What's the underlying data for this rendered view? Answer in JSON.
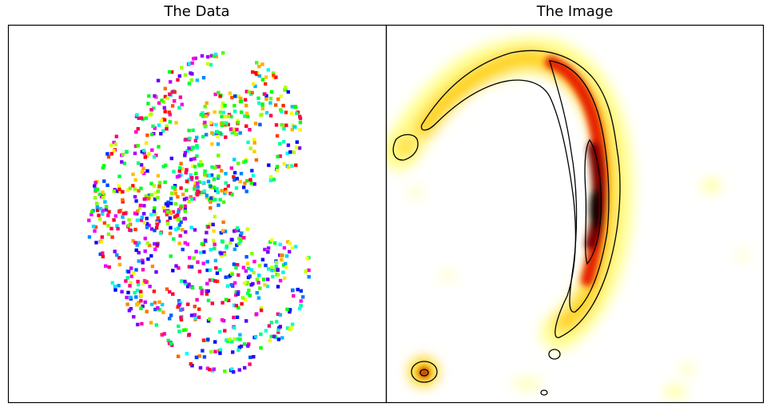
{
  "panels": [
    {
      "title": "The Data"
    },
    {
      "title": "The Image"
    }
  ],
  "chart_data": [
    {
      "type": "scatter",
      "title": "The Data",
      "xlabel": "",
      "ylabel": "",
      "axes_ticks": "none",
      "grid": false,
      "colormap": "hsv (phase)",
      "structure": "concentric elliptical arc tracks of small uv-coverage tiles around a central hole"
    },
    {
      "type": "heatmap",
      "title": "The Image",
      "xlabel": "",
      "ylabel": "",
      "axes_ticks": "none",
      "grid": false,
      "colormap": "hot_r (white-yellow-red-black)",
      "contours": "black",
      "structure": "bright curved arc (hook) with peak right of centre, small compact blob bottom-left"
    }
  ],
  "colors": {
    "frame": "#000000",
    "background": "#ffffff"
  }
}
